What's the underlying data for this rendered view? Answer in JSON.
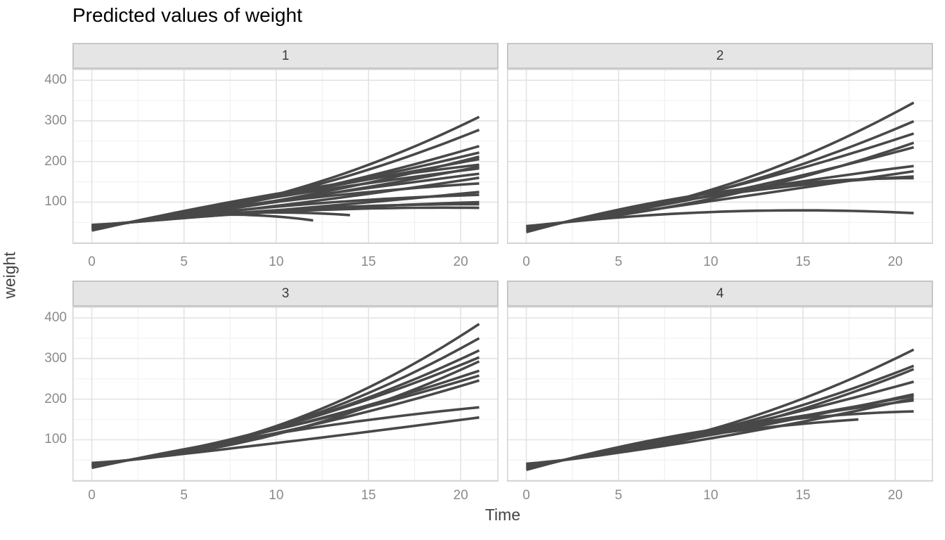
{
  "figure": {
    "title": "Predicted values of weight"
  },
  "chart_data": {
    "type": "line",
    "title": "Predicted values of weight",
    "xlabel": "Time",
    "ylabel": "weight",
    "x_ticks": [
      0,
      5,
      10,
      15,
      20
    ],
    "x_minor_ticks": [
      2.5,
      7.5,
      12.5,
      17.5
    ],
    "y_ticks": [
      100,
      200,
      300,
      400
    ],
    "y_minor_ticks": [
      50,
      150,
      250,
      350
    ],
    "xlim": [
      -1.05,
      22.05
    ],
    "ylim": [
      -3,
      428
    ],
    "grid": "on",
    "legend": "none",
    "line_width": 3.6,
    "colors": {
      "line": "#484848",
      "grid_major": "#e3e3e3",
      "grid_minor": "#f1f1f1",
      "panel_border": "#d6d6d6",
      "strip_bg": "#e5e5e5",
      "strip_border": "#c6c6c6",
      "tick_text": "#8a8a8a",
      "axis_title_text": "#454545",
      "title_text": "#000000"
    },
    "curve_model": "quadratic growth curves per subject, all passing near a common pinch point",
    "pinch": {
      "t": 2,
      "w": 50
    },
    "series_format": "[weight_at_time_0, last_time, weight_at_last_time]",
    "facets": [
      {
        "label": "1",
        "series": [
          [
            42,
            21,
            310
          ],
          [
            40,
            21,
            278
          ],
          [
            38,
            21,
            238
          ],
          [
            36,
            21,
            222
          ],
          [
            40,
            21,
            212
          ],
          [
            34,
            21,
            206
          ],
          [
            30,
            21,
            192
          ],
          [
            39,
            21,
            187
          ],
          [
            33,
            21,
            183
          ],
          [
            36,
            21,
            170
          ],
          [
            41,
            21,
            160
          ],
          [
            35,
            21,
            146
          ],
          [
            43,
            21,
            125
          ],
          [
            38,
            21,
            118
          ],
          [
            42,
            21,
            100
          ],
          [
            40,
            21,
            95
          ],
          [
            41,
            21,
            86
          ],
          [
            36,
            14,
            68
          ],
          [
            33,
            12,
            55
          ],
          [
            44,
            2,
            49
          ]
        ]
      },
      {
        "label": "2",
        "series": [
          [
            40,
            21,
            345
          ],
          [
            38,
            21,
            299
          ],
          [
            35,
            21,
            269
          ],
          [
            41,
            21,
            246
          ],
          [
            36,
            21,
            235
          ],
          [
            32,
            21,
            189
          ],
          [
            37,
            21,
            176
          ],
          [
            30,
            21,
            163
          ],
          [
            26,
            21,
            159
          ],
          [
            40,
            21,
            73
          ]
        ]
      },
      {
        "label": "3",
        "series": [
          [
            42,
            21,
            385
          ],
          [
            40,
            21,
            350
          ],
          [
            38,
            21,
            320
          ],
          [
            36,
            21,
            303
          ],
          [
            43,
            21,
            293
          ],
          [
            35,
            21,
            270
          ],
          [
            34,
            21,
            258
          ],
          [
            37,
            21,
            246
          ],
          [
            31,
            21,
            180
          ],
          [
            40,
            21,
            155
          ]
        ]
      },
      {
        "label": "4",
        "series": [
          [
            40,
            21,
            322
          ],
          [
            38,
            21,
            282
          ],
          [
            41,
            21,
            274
          ],
          [
            35,
            21,
            243
          ],
          [
            36,
            21,
            212
          ],
          [
            33,
            21,
            208
          ],
          [
            39,
            21,
            202
          ],
          [
            30,
            21,
            197
          ],
          [
            26,
            21,
            170
          ],
          [
            30,
            18,
            150
          ]
        ]
      }
    ]
  }
}
